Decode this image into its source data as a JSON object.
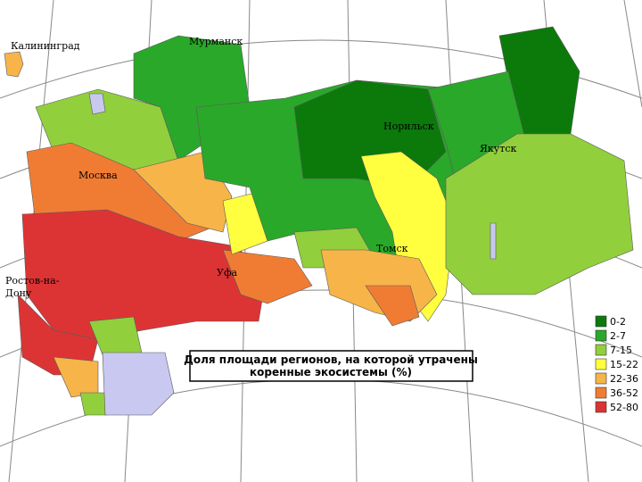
{
  "map": {
    "cities": [
      {
        "lines": [
          "Калининград"
        ]
      },
      {
        "lines": [
          "Мурманск"
        ]
      },
      {
        "lines": [
          "Норильск"
        ]
      },
      {
        "lines": [
          "Якутск"
        ]
      },
      {
        "lines": [
          "Москва"
        ]
      },
      {
        "lines": [
          "Томск"
        ]
      },
      {
        "lines": [
          "Уфа"
        ]
      },
      {
        "lines": [
          "Ростов-на-",
          "Дону"
        ]
      }
    ],
    "caption": [
      "Доля площади регионов, на которой утрачены",
      "коренные экосистемы  (%)"
    ],
    "legend": [
      {
        "label": "0-2",
        "color": "#0b7a0b"
      },
      {
        "label": "2-7",
        "color": "#2aa82a"
      },
      {
        "label": "7-15",
        "color": "#92cf3c"
      },
      {
        "label": "15-22",
        "color": "#ffff40"
      },
      {
        "label": "22-36",
        "color": "#f7b448"
      },
      {
        "label": "36-52",
        "color": "#f07c34"
      },
      {
        "label": "52-80",
        "color": "#dc3434"
      }
    ]
  }
}
